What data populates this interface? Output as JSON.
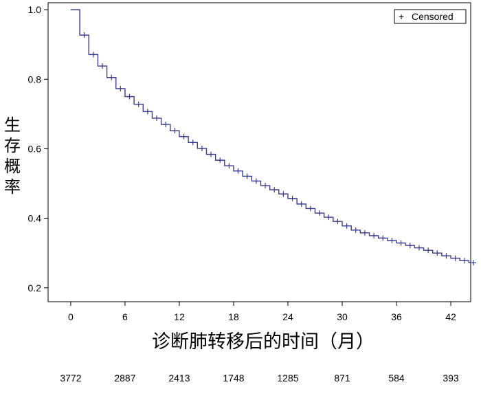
{
  "chart_data": {
    "type": "line",
    "title": "",
    "xlabel": "诊断肺转移后的时间（月）",
    "ylabel": "生存概率",
    "xlim": [
      -2.5,
      44.2
    ],
    "ylim": [
      0.16,
      1.02
    ],
    "x_ticks": [
      0,
      6,
      12,
      18,
      24,
      30,
      36,
      42
    ],
    "y_ticks": [
      0.2,
      0.4,
      0.6,
      0.8,
      1.0
    ],
    "x_tick_labels": [
      "0",
      "6",
      "12",
      "18",
      "24",
      "30",
      "36",
      "42"
    ],
    "y_tick_labels": [
      "0.2",
      "0.4",
      "0.6",
      "0.8",
      "1.0"
    ],
    "grid": false,
    "legend": {
      "entries": [
        "Censored"
      ],
      "symbol": "+",
      "placement": "top-right"
    },
    "series": [
      {
        "color": "#3b3b8c",
        "style": "step",
        "x": [
          0,
          1,
          2,
          3,
          4,
          5,
          6,
          7,
          8,
          9,
          10,
          11,
          12,
          13,
          14,
          15,
          16,
          17,
          18,
          19,
          20,
          21,
          22,
          23,
          24,
          25,
          26,
          27,
          28,
          29,
          30,
          31,
          32,
          33,
          34,
          35,
          36,
          37,
          38,
          39,
          40,
          41,
          42,
          43,
          44
        ],
        "y": [
          1.0,
          0.927,
          0.871,
          0.838,
          0.805,
          0.773,
          0.75,
          0.728,
          0.707,
          0.688,
          0.67,
          0.652,
          0.635,
          0.618,
          0.601,
          0.584,
          0.567,
          0.551,
          0.536,
          0.521,
          0.507,
          0.494,
          0.482,
          0.47,
          0.457,
          0.441,
          0.428,
          0.415,
          0.403,
          0.391,
          0.378,
          0.366,
          0.358,
          0.35,
          0.343,
          0.336,
          0.329,
          0.322,
          0.315,
          0.308,
          0.3,
          0.292,
          0.285,
          0.278,
          0.272
        ],
        "censored_at": [
          1,
          2,
          3,
          4,
          5,
          6,
          7,
          8,
          9,
          10,
          11,
          12,
          13,
          14,
          15,
          16,
          17,
          18,
          19,
          20,
          21,
          22,
          23,
          24,
          25,
          26,
          27,
          28,
          29,
          30,
          31,
          32,
          33,
          34,
          35,
          36,
          37,
          38,
          39,
          40,
          41,
          42,
          43,
          44
        ]
      }
    ],
    "number_at_risk": {
      "x": [
        0,
        6,
        12,
        18,
        24,
        30,
        36,
        42
      ],
      "values": [
        "3772",
        "2887",
        "2413",
        "1748",
        "1285",
        "871",
        "584",
        "393"
      ]
    }
  }
}
